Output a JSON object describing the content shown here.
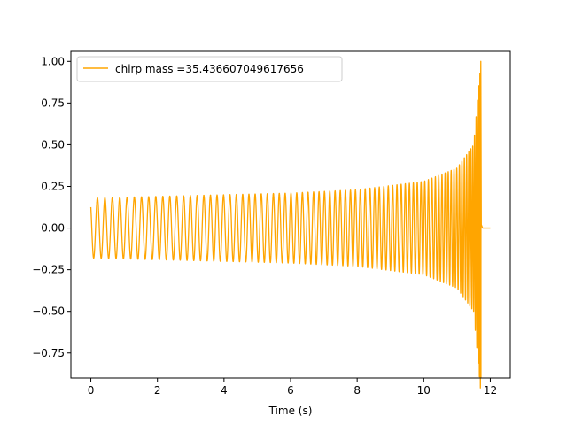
{
  "chart_data": {
    "type": "line",
    "title": "",
    "xlabel": "Time (s)",
    "ylabel": "",
    "xlim": [
      -0.6,
      12.6
    ],
    "ylim": [
      -0.9,
      1.06
    ],
    "xticks": [
      0,
      2,
      4,
      6,
      8,
      10,
      12
    ],
    "xtick_labels": [
      "0",
      "2",
      "4",
      "6",
      "8",
      "10",
      "12"
    ],
    "yticks": [
      -0.75,
      -0.5,
      -0.25,
      0.0,
      0.25,
      0.5,
      0.75,
      1.0
    ],
    "ytick_labels": [
      "−0.75",
      "−0.50",
      "−0.25",
      "0.00",
      "0.25",
      "0.50",
      "0.75",
      "1.00"
    ],
    "grid": false,
    "legend_position": "upper-left",
    "series": [
      {
        "name": "chirp mass =35.436607049617656",
        "color": "#ffa500",
        "description_type": "chirp-waveform",
        "t_start": 0.0,
        "t_merger": 11.72,
        "t_end": 12.0,
        "initial_amplitude": 0.18,
        "initial_frequency_hz": 4.4,
        "peak_value": 1.0,
        "min_value": -0.9,
        "sample_envelope": {
          "t": [
            0.0,
            2.0,
            4.0,
            6.0,
            8.0,
            10.0,
            11.0,
            11.5,
            11.72
          ],
          "amplitude": [
            0.18,
            0.19,
            0.2,
            0.21,
            0.23,
            0.28,
            0.36,
            0.5,
            1.0
          ]
        }
      }
    ]
  }
}
